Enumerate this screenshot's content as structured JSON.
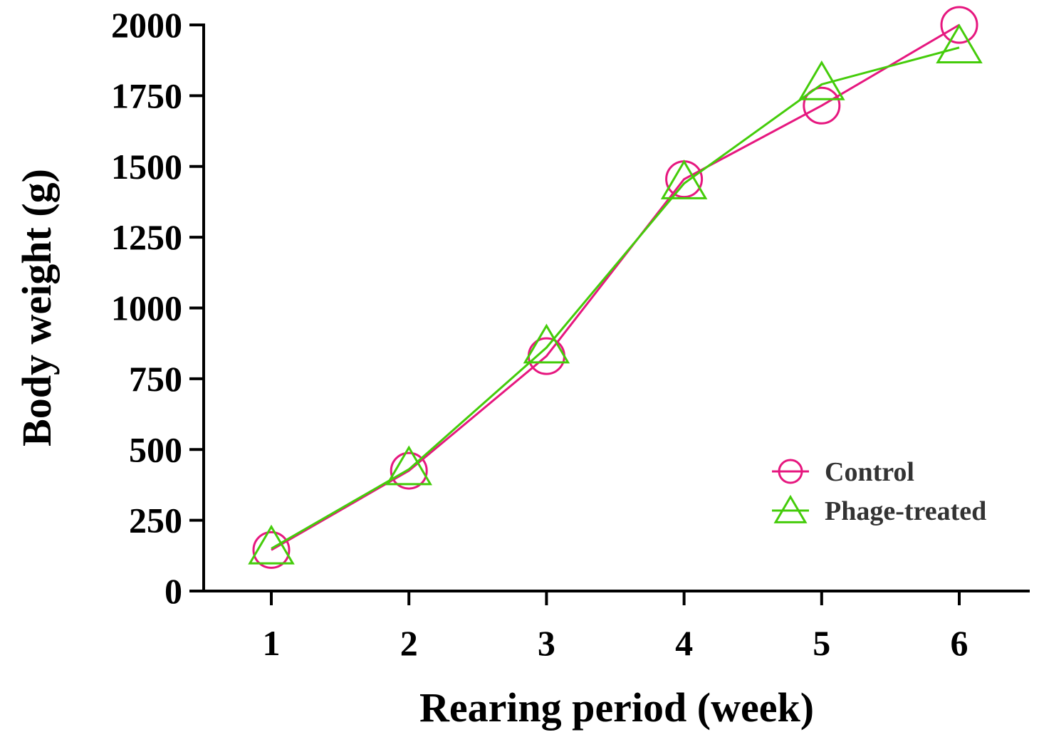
{
  "chart_data": {
    "type": "line",
    "title": "",
    "xlabel": "Rearing period (week)",
    "ylabel": "Body weight (g)",
    "x": [
      1,
      2,
      3,
      4,
      5,
      6
    ],
    "x_tick_labels": [
      "1",
      "2",
      "3",
      "4",
      "5",
      "6"
    ],
    "xlim": [
      0.5,
      6.5
    ],
    "ylim": [
      0,
      2000
    ],
    "y_ticks": [
      0,
      250,
      500,
      750,
      1000,
      1250,
      1500,
      1750,
      2000
    ],
    "y_tick_labels": [
      "0",
      "250",
      "500",
      "750",
      "1000",
      "1250",
      "1500",
      "1750",
      "2000"
    ],
    "grid": false,
    "legend_position": "lower-right",
    "series": [
      {
        "name": "Control",
        "marker": "circle",
        "color": "#e6177f",
        "values": [
          145,
          425,
          830,
          1455,
          1715,
          2000
        ]
      },
      {
        "name": "Phage-treated",
        "marker": "triangle",
        "color": "#44cc0a",
        "values": [
          150,
          430,
          860,
          1440,
          1790,
          1920
        ]
      }
    ]
  }
}
